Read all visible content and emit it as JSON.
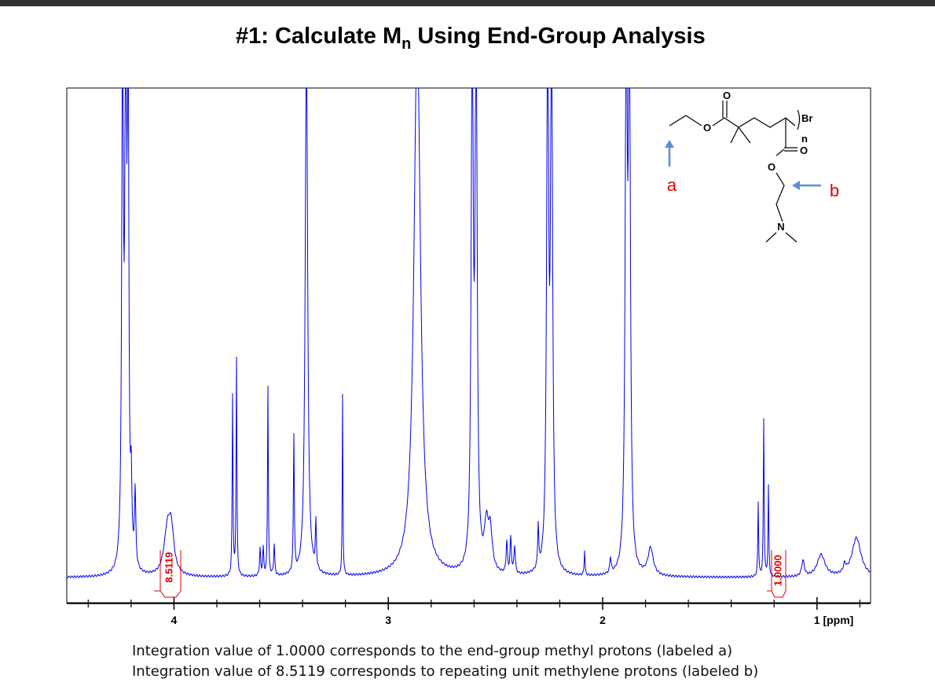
{
  "chart_data": {
    "type": "nmr",
    "title_main": "#1: Calculate M",
    "title_sub": "n",
    "title_rest": " Using End-Group Analysis",
    "xlim": [
      4.5,
      0.75
    ],
    "xticks": [
      4,
      3,
      2,
      {
        "value": 1,
        "label": "1 [ppm]"
      }
    ],
    "minor_xticks": [
      4.4,
      4.2,
      3.8,
      3.6,
      3.4,
      3.2,
      2.8,
      2.6,
      2.4,
      2.2,
      1.8,
      1.6,
      1.4,
      1.2,
      0.8
    ],
    "integrals": [
      "8.5119",
      "1.0000"
    ],
    "structure_labels": {
      "o1": "O",
      "o2": "O",
      "o3": "O",
      "o4": "O",
      "br": "Br",
      "n": "n",
      "nitrogen": "N",
      "a": "a",
      "b": "b"
    },
    "caption": [
      "Integration value of 1.0000 corresponds to the end-group methyl protons (labeled a)",
      "Integration value of 8.5119 corresponds to repeating unit methylene protons (labeled b)"
    ]
  }
}
